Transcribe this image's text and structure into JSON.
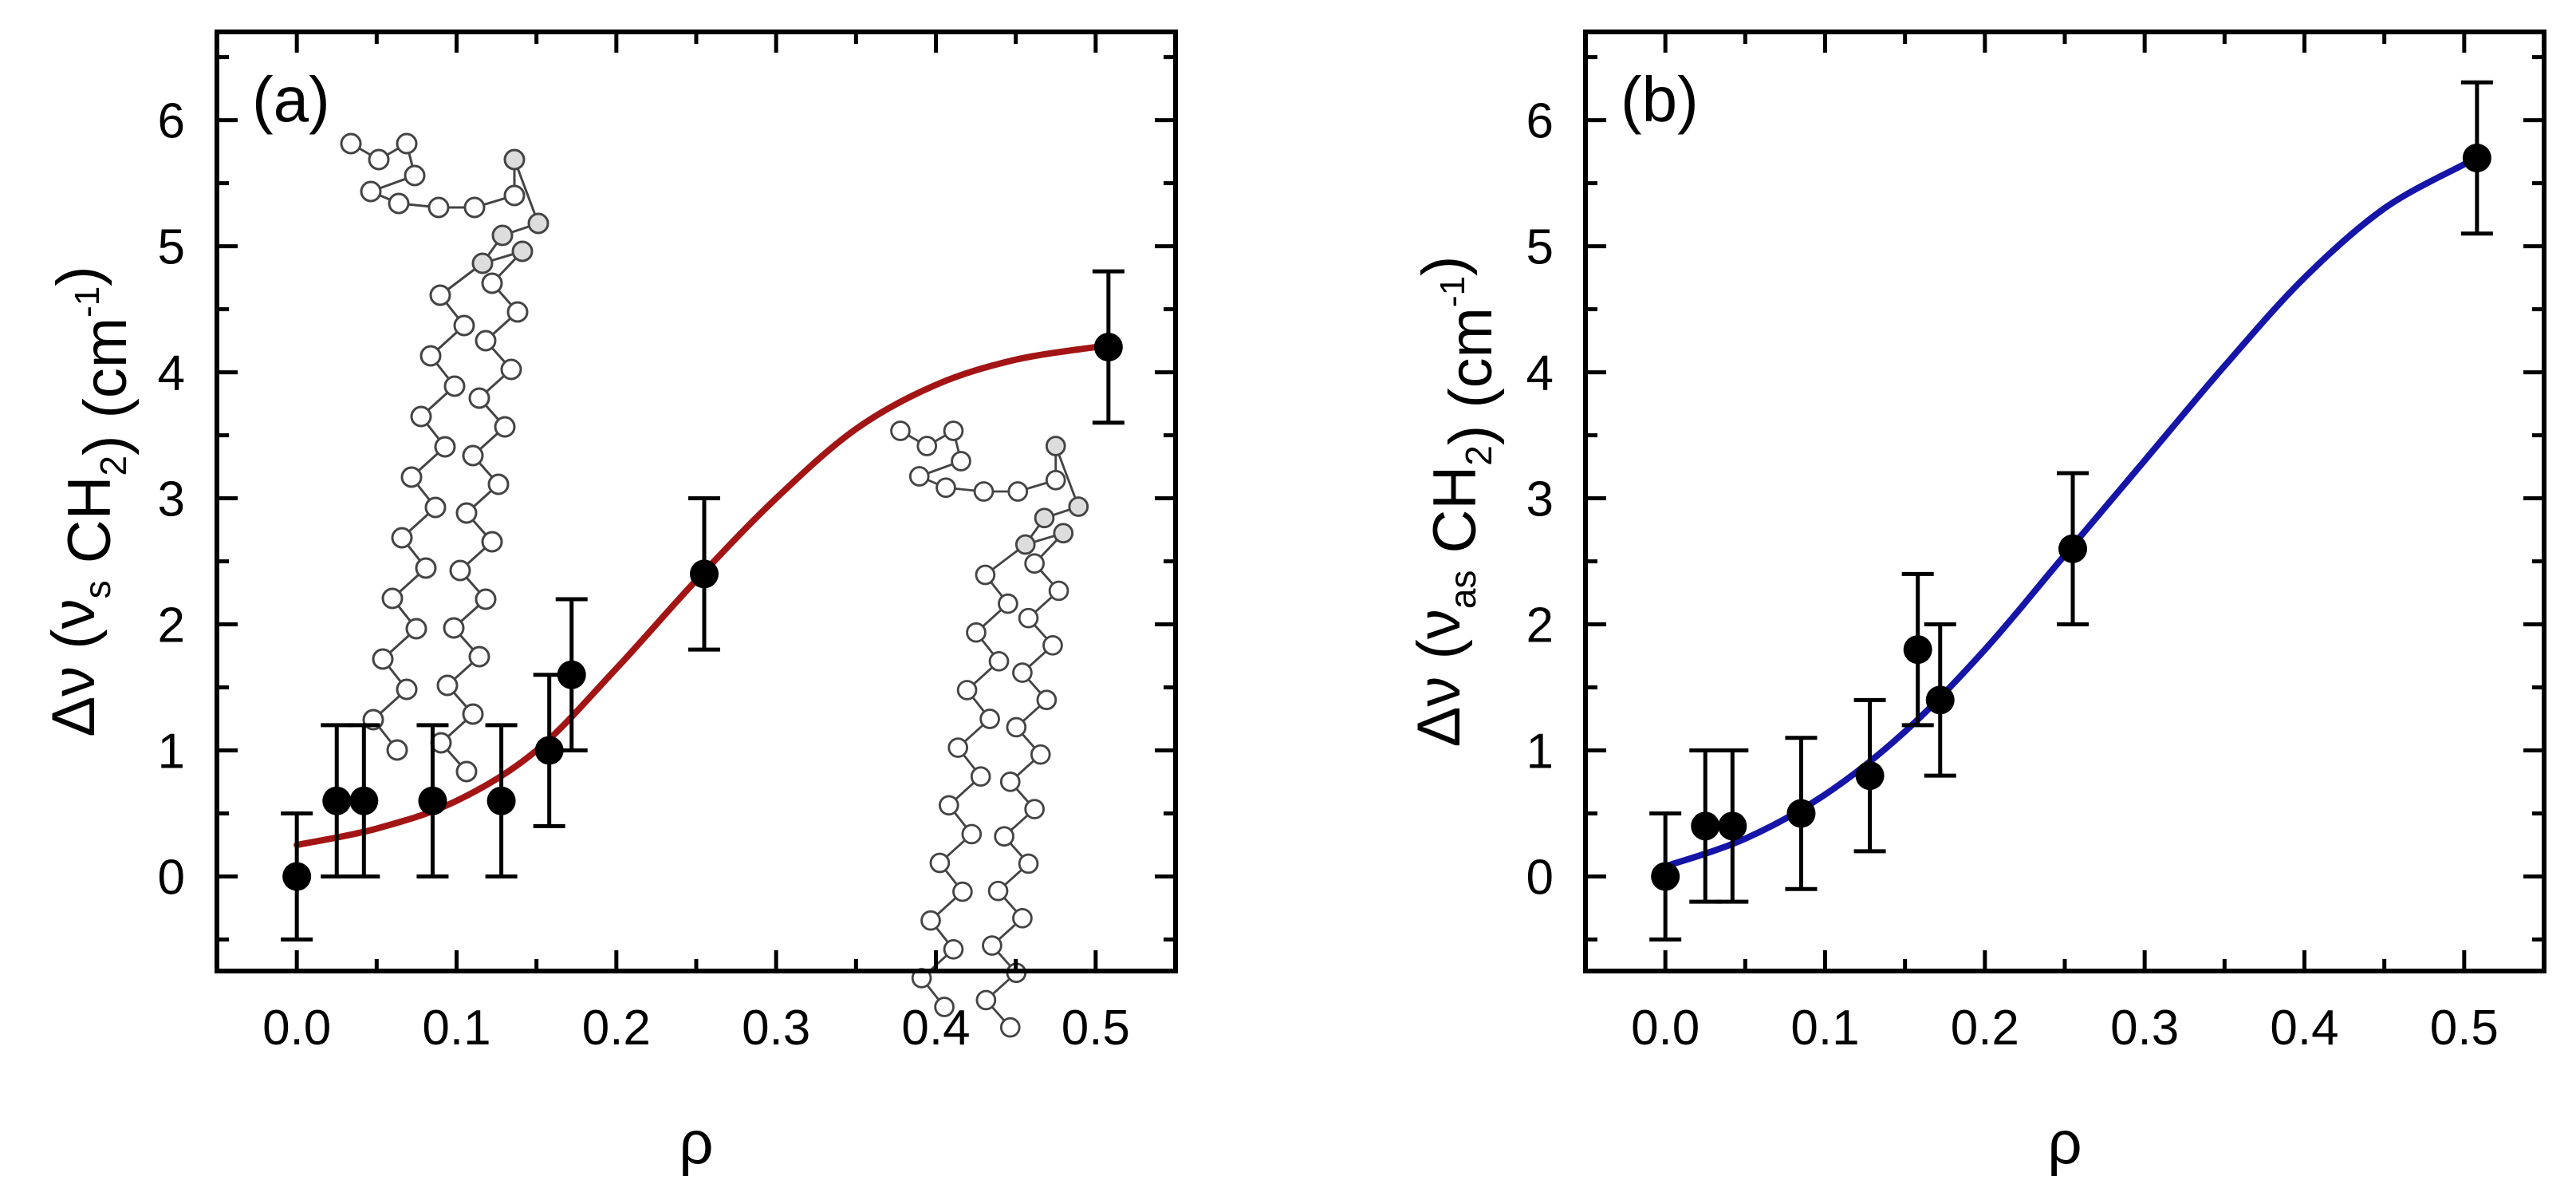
{
  "chart_data": [
    {
      "type": "scatter",
      "panel_label": "(a)",
      "x": [
        0.0,
        0.025,
        0.042,
        0.085,
        0.128,
        0.158,
        0.172,
        0.255,
        0.508
      ],
      "y": [
        0.0,
        0.6,
        0.6,
        0.6,
        0.6,
        1.0,
        1.6,
        2.4,
        4.2
      ],
      "yerr": [
        0.5,
        0.6,
        0.6,
        0.6,
        0.6,
        0.6,
        0.6,
        0.6,
        0.6
      ],
      "fit": {
        "x": [
          0.0,
          0.05,
          0.1,
          0.15,
          0.2,
          0.25,
          0.3,
          0.35,
          0.4,
          0.45,
          0.5
        ],
        "y": [
          0.25,
          0.38,
          0.6,
          1.0,
          1.65,
          2.35,
          3.0,
          3.55,
          3.9,
          4.1,
          4.2
        ],
        "color": "#a31515"
      },
      "marker_color": "#000000",
      "xlabel": "ρ",
      "ylabel_prefix": "Δν (ν",
      "ylabel_sub": "s",
      "ylabel_mid": " CH",
      "ylabel_sub2": "2",
      "ylabel_unit": ") (cm",
      "ylabel_sup": "-1",
      "ylabel_end": ")",
      "xlim": [
        -0.05,
        0.55
      ],
      "ylim": [
        -0.75,
        6.7
      ],
      "xticks": [
        0.0,
        0.1,
        0.2,
        0.3,
        0.4,
        0.5
      ],
      "xtick_labels": [
        "0.0",
        "0.1",
        "0.2",
        "0.3",
        "0.4",
        "0.5"
      ],
      "yticks": [
        0,
        1,
        2,
        3,
        4,
        5,
        6
      ],
      "ytick_labels": [
        "0",
        "1",
        "2",
        "3",
        "4",
        "5",
        "6"
      ],
      "insets": [
        "lipid-molecule-1",
        "lipid-molecule-2"
      ]
    },
    {
      "type": "scatter",
      "panel_label": "(b)",
      "x": [
        0.0,
        0.025,
        0.042,
        0.085,
        0.128,
        0.158,
        0.172,
        0.255,
        0.508
      ],
      "y": [
        0.0,
        0.4,
        0.4,
        0.5,
        0.8,
        1.8,
        1.4,
        2.6,
        5.7
      ],
      "yerr": [
        0.5,
        0.6,
        0.6,
        0.6,
        0.6,
        0.6,
        0.6,
        0.6,
        0.6
      ],
      "fit": {
        "x": [
          0.0,
          0.05,
          0.1,
          0.15,
          0.2,
          0.25,
          0.3,
          0.35,
          0.4,
          0.45,
          0.5
        ],
        "y": [
          0.08,
          0.3,
          0.65,
          1.15,
          1.8,
          2.55,
          3.3,
          4.05,
          4.75,
          5.3,
          5.65
        ],
        "color": "#1515a8"
      },
      "marker_color": "#000000",
      "xlabel": "ρ",
      "ylabel_prefix": "Δν (ν",
      "ylabel_sub": "as",
      "ylabel_mid": " CH",
      "ylabel_sub2": "2",
      "ylabel_unit": ") (cm",
      "ylabel_sup": "-1",
      "ylabel_end": ")",
      "xlim": [
        -0.05,
        0.55
      ],
      "ylim": [
        -0.75,
        6.7
      ],
      "xticks": [
        0.0,
        0.1,
        0.2,
        0.3,
        0.4,
        0.5
      ],
      "xtick_labels": [
        "0.0",
        "0.1",
        "0.2",
        "0.3",
        "0.4",
        "0.5"
      ],
      "yticks": [
        0,
        1,
        2,
        3,
        4,
        5,
        6
      ],
      "ytick_labels": [
        "0",
        "1",
        "2",
        "3",
        "4",
        "5",
        "6"
      ]
    }
  ]
}
